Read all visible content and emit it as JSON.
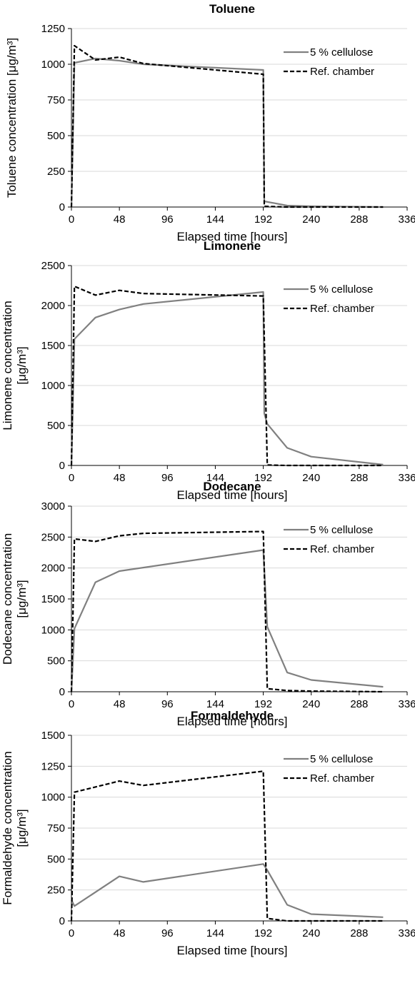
{
  "chart_data": [
    {
      "type": "line",
      "title": "Toluene",
      "xlabel": "Elapsed time [hours]",
      "ylabel": "Toluene concentration [μg/m³]",
      "ylabel_lines": [
        "Toluene concentration [μg/m³]"
      ],
      "xlim": [
        0,
        336
      ],
      "ylim": [
        0,
        1250
      ],
      "yticks": [
        0,
        250,
        500,
        750,
        1000,
        1250
      ],
      "xticks": [
        0,
        48,
        96,
        144,
        192,
        240,
        288,
        336
      ],
      "grid": "horizontal",
      "legend": "top-right",
      "series": [
        {
          "name": "5 % cellulose",
          "color": "#808080",
          "dash": "solid",
          "points": [
            [
              0,
              0
            ],
            [
              3,
              1010
            ],
            [
              24,
              1040
            ],
            [
              48,
              1025
            ],
            [
              72,
              1000
            ],
            [
              192,
              960
            ],
            [
              193,
              40
            ],
            [
              216,
              10
            ],
            [
              240,
              5
            ],
            [
              312,
              0
            ]
          ]
        },
        {
          "name": "Ref. chamber",
          "color": "#000000",
          "dash": "dashed",
          "points": [
            [
              0,
              0
            ],
            [
              3,
              1130
            ],
            [
              24,
              1030
            ],
            [
              48,
              1050
            ],
            [
              72,
              1005
            ],
            [
              192,
              930
            ],
            [
              193,
              5
            ],
            [
              216,
              0
            ],
            [
              240,
              0
            ],
            [
              312,
              0
            ]
          ]
        }
      ]
    },
    {
      "type": "line",
      "title": "Limonene",
      "xlabel": "Elapsed time [hours]",
      "ylabel": "Limonene concentration [μg/m³]",
      "ylabel_lines": [
        "Limonene concentration",
        "[μg/m³]"
      ],
      "xlim": [
        0,
        336
      ],
      "ylim": [
        0,
        2500
      ],
      "yticks": [
        0,
        500,
        1000,
        1500,
        2000,
        2500
      ],
      "xticks": [
        0,
        48,
        96,
        144,
        192,
        240,
        288,
        336
      ],
      "grid": "horizontal",
      "legend": "top-right",
      "series": [
        {
          "name": "5 % cellulose",
          "color": "#808080",
          "dash": "solid",
          "points": [
            [
              0,
              0
            ],
            [
              3,
              1580
            ],
            [
              24,
              1850
            ],
            [
              48,
              1950
            ],
            [
              72,
              2020
            ],
            [
              192,
              2170
            ],
            [
              193,
              650
            ],
            [
              196,
              520
            ],
            [
              216,
              220
            ],
            [
              240,
              110
            ],
            [
              312,
              10
            ]
          ]
        },
        {
          "name": "Ref. chamber",
          "color": "#000000",
          "dash": "dashed",
          "points": [
            [
              0,
              0
            ],
            [
              3,
              2240
            ],
            [
              24,
              2130
            ],
            [
              48,
              2190
            ],
            [
              72,
              2150
            ],
            [
              192,
              2120
            ],
            [
              196,
              5
            ],
            [
              216,
              0
            ],
            [
              240,
              0
            ],
            [
              312,
              0
            ]
          ]
        }
      ]
    },
    {
      "type": "line",
      "title": "Dodecane",
      "xlabel": "Elapsed time [hours]",
      "ylabel": "Dodecane concentration [μg/m³]",
      "ylabel_lines": [
        "Dodecane concentration",
        "[μg/m³]"
      ],
      "xlim": [
        0,
        336
      ],
      "ylim": [
        0,
        3000
      ],
      "yticks": [
        0,
        500,
        1000,
        1500,
        2000,
        2500,
        3000
      ],
      "xticks": [
        0,
        48,
        96,
        144,
        192,
        240,
        288,
        336
      ],
      "grid": "horizontal",
      "legend": "top-right",
      "series": [
        {
          "name": "5 % cellulose",
          "color": "#808080",
          "dash": "solid",
          "points": [
            [
              0,
              0
            ],
            [
              3,
              1020
            ],
            [
              24,
              1770
            ],
            [
              48,
              1950
            ],
            [
              192,
              2290
            ],
            [
              196,
              1050
            ],
            [
              216,
              310
            ],
            [
              240,
              190
            ],
            [
              312,
              80
            ]
          ]
        },
        {
          "name": "Ref. chamber",
          "color": "#000000",
          "dash": "dashed",
          "points": [
            [
              0,
              0
            ],
            [
              3,
              2470
            ],
            [
              24,
              2430
            ],
            [
              48,
              2520
            ],
            [
              72,
              2560
            ],
            [
              192,
              2590
            ],
            [
              196,
              50
            ],
            [
              216,
              20
            ],
            [
              240,
              10
            ],
            [
              312,
              0
            ]
          ]
        }
      ]
    },
    {
      "type": "line",
      "title": "Formaldehyde",
      "xlabel": "Elapsed time [hours]",
      "ylabel": "Formaldehyde concentration [μg/m³]",
      "ylabel_lines": [
        "Formaldehyde concentration",
        "[μg/m³]"
      ],
      "xlim": [
        0,
        336
      ],
      "ylim": [
        0,
        1500
      ],
      "yticks": [
        0,
        250,
        500,
        750,
        1000,
        1250,
        1500
      ],
      "xticks": [
        0,
        48,
        96,
        144,
        192,
        240,
        288,
        336
      ],
      "grid": "horizontal",
      "legend": "top-right",
      "series": [
        {
          "name": "5 % cellulose",
          "color": "#808080",
          "dash": "solid",
          "points": [
            [
              0,
              170
            ],
            [
              3,
              120
            ],
            [
              48,
              360
            ],
            [
              72,
              315
            ],
            [
              192,
              460
            ],
            [
              196,
              410
            ],
            [
              216,
              130
            ],
            [
              240,
              55
            ],
            [
              312,
              30
            ]
          ]
        },
        {
          "name": "Ref. chamber",
          "color": "#000000",
          "dash": "dashed",
          "points": [
            [
              0,
              0
            ],
            [
              3,
              1040
            ],
            [
              48,
              1130
            ],
            [
              72,
              1095
            ],
            [
              192,
              1210
            ],
            [
              196,
              20
            ],
            [
              216,
              0
            ],
            [
              240,
              0
            ],
            [
              312,
              0
            ]
          ]
        }
      ]
    }
  ]
}
